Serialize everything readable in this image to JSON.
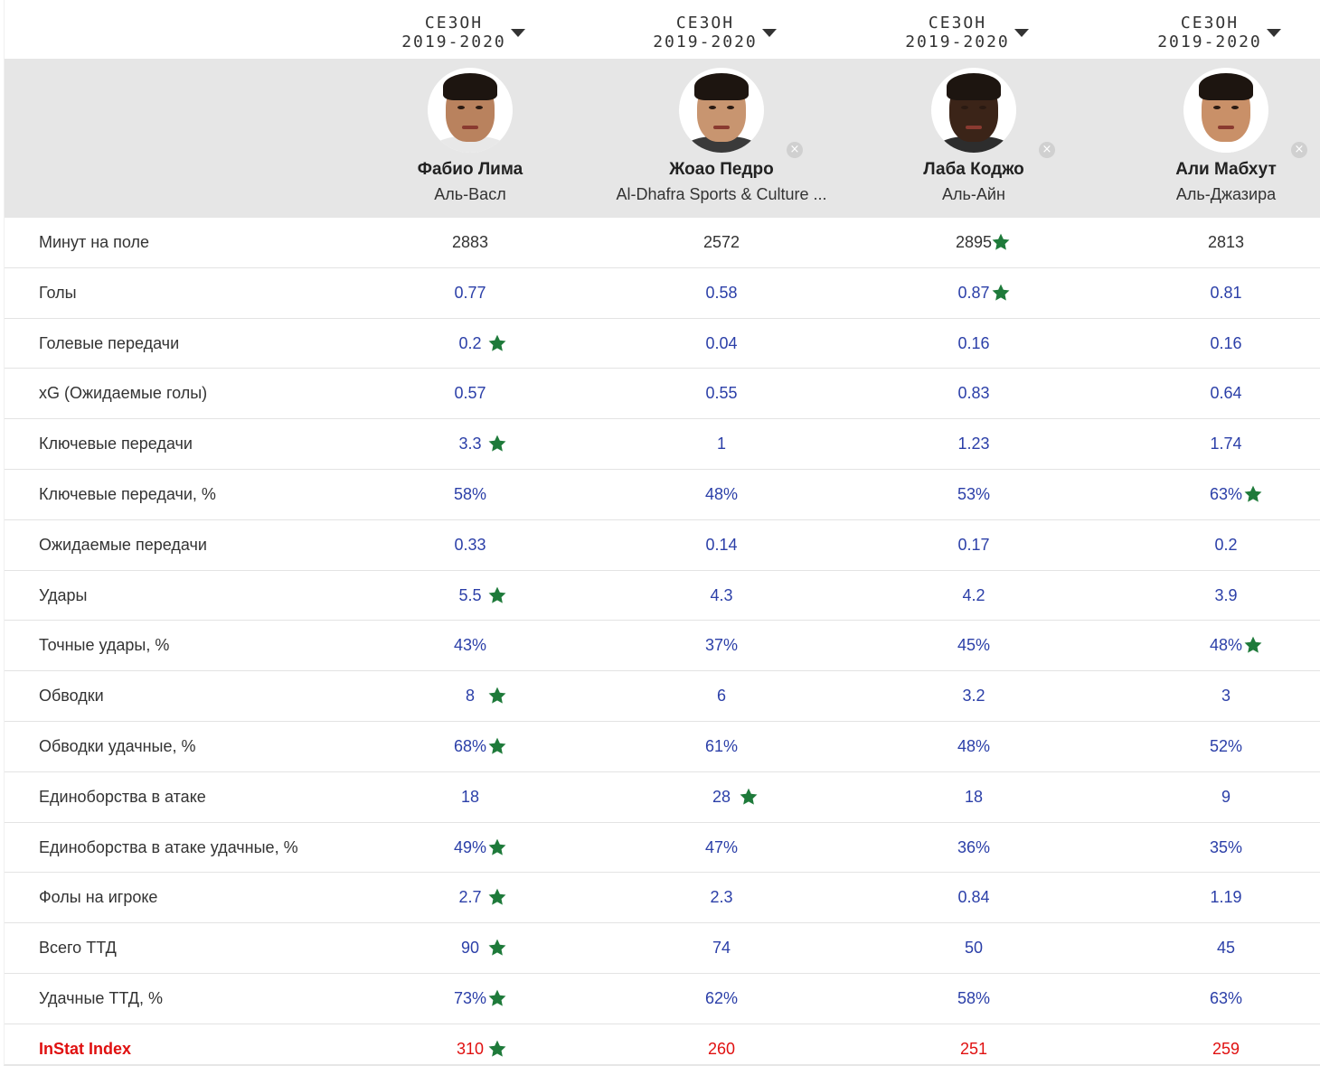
{
  "season": {
    "label": "СЕЗОН",
    "value": "2019-2020"
  },
  "players": [
    {
      "name": "Фабио Лима",
      "team": "Аль-Васл",
      "removable": false,
      "skin": "#b9825e",
      "shirt": "#e8e8e8"
    },
    {
      "name": "Жоао Педро",
      "team": "Al-Dhafra Sports & Culture ...",
      "removable": true,
      "skin": "#c89570",
      "shirt": "#3a3a3a"
    },
    {
      "name": "Лаба Коджо",
      "team": "Аль-Айн",
      "removable": true,
      "skin": "#3b2418",
      "shirt": "#2d2d2d"
    },
    {
      "name": "Али Мабхут",
      "team": "Аль-Джазира",
      "removable": true,
      "skin": "#c99068",
      "shirt": "#ffffff"
    }
  ],
  "remove_glyph": "×",
  "colors": {
    "value": "#2b3fa8",
    "index": "#e01010",
    "star": "#1e7a3a",
    "header_band": "#e6e6e6"
  },
  "stats": [
    {
      "label": "Минут на поле",
      "values": [
        "2883",
        "2572",
        "2895",
        "2813"
      ],
      "best": [
        2
      ]
    },
    {
      "label": "Голы",
      "values": [
        "0.77",
        "0.58",
        "0.87",
        "0.81"
      ],
      "best": [
        2
      ]
    },
    {
      "label": "Голевые передачи",
      "values": [
        "0.2",
        "0.04",
        "0.16",
        "0.16"
      ],
      "best": [
        0
      ]
    },
    {
      "label": "xG (Ожидаемые голы)",
      "values": [
        "0.57",
        "0.55",
        "0.83",
        "0.64"
      ],
      "best": []
    },
    {
      "label": "Ключевые передачи",
      "values": [
        "3.3",
        "1",
        "1.23",
        "1.74"
      ],
      "best": [
        0
      ]
    },
    {
      "label": "Ключевые передачи, %",
      "values": [
        "58%",
        "48%",
        "53%",
        "63%"
      ],
      "best": [
        3
      ]
    },
    {
      "label": "Ожидаемые передачи",
      "values": [
        "0.33",
        "0.14",
        "0.17",
        "0.2"
      ],
      "best": []
    },
    {
      "label": "Удары",
      "values": [
        "5.5",
        "4.3",
        "4.2",
        "3.9"
      ],
      "best": [
        0
      ]
    },
    {
      "label": "Точные удары, %",
      "values": [
        "43%",
        "37%",
        "45%",
        "48%"
      ],
      "best": [
        3
      ]
    },
    {
      "label": "Обводки",
      "values": [
        "8",
        "6",
        "3.2",
        "3"
      ],
      "best": [
        0
      ]
    },
    {
      "label": "Обводки удачные, %",
      "values": [
        "68%",
        "61%",
        "48%",
        "52%"
      ],
      "best": [
        0
      ]
    },
    {
      "label": "Единоборства в атаке",
      "values": [
        "18",
        "28",
        "18",
        "9"
      ],
      "best": [
        1
      ]
    },
    {
      "label": "Единоборства в атаке удачные, %",
      "values": [
        "49%",
        "47%",
        "36%",
        "35%"
      ],
      "best": [
        0
      ]
    },
    {
      "label": "Фолы на игроке",
      "values": [
        "2.7",
        "2.3",
        "0.84",
        "1.19"
      ],
      "best": [
        0
      ]
    },
    {
      "label": "Всего ТТД",
      "values": [
        "90",
        "74",
        "50",
        "45"
      ],
      "best": [
        0
      ]
    },
    {
      "label": "Удачные ТТД, %",
      "values": [
        "73%",
        "62%",
        "58%",
        "63%"
      ],
      "best": [
        0
      ]
    },
    {
      "label": "InStat Index",
      "values": [
        "310",
        "260",
        "251",
        "259"
      ],
      "best": [
        0
      ]
    }
  ]
}
